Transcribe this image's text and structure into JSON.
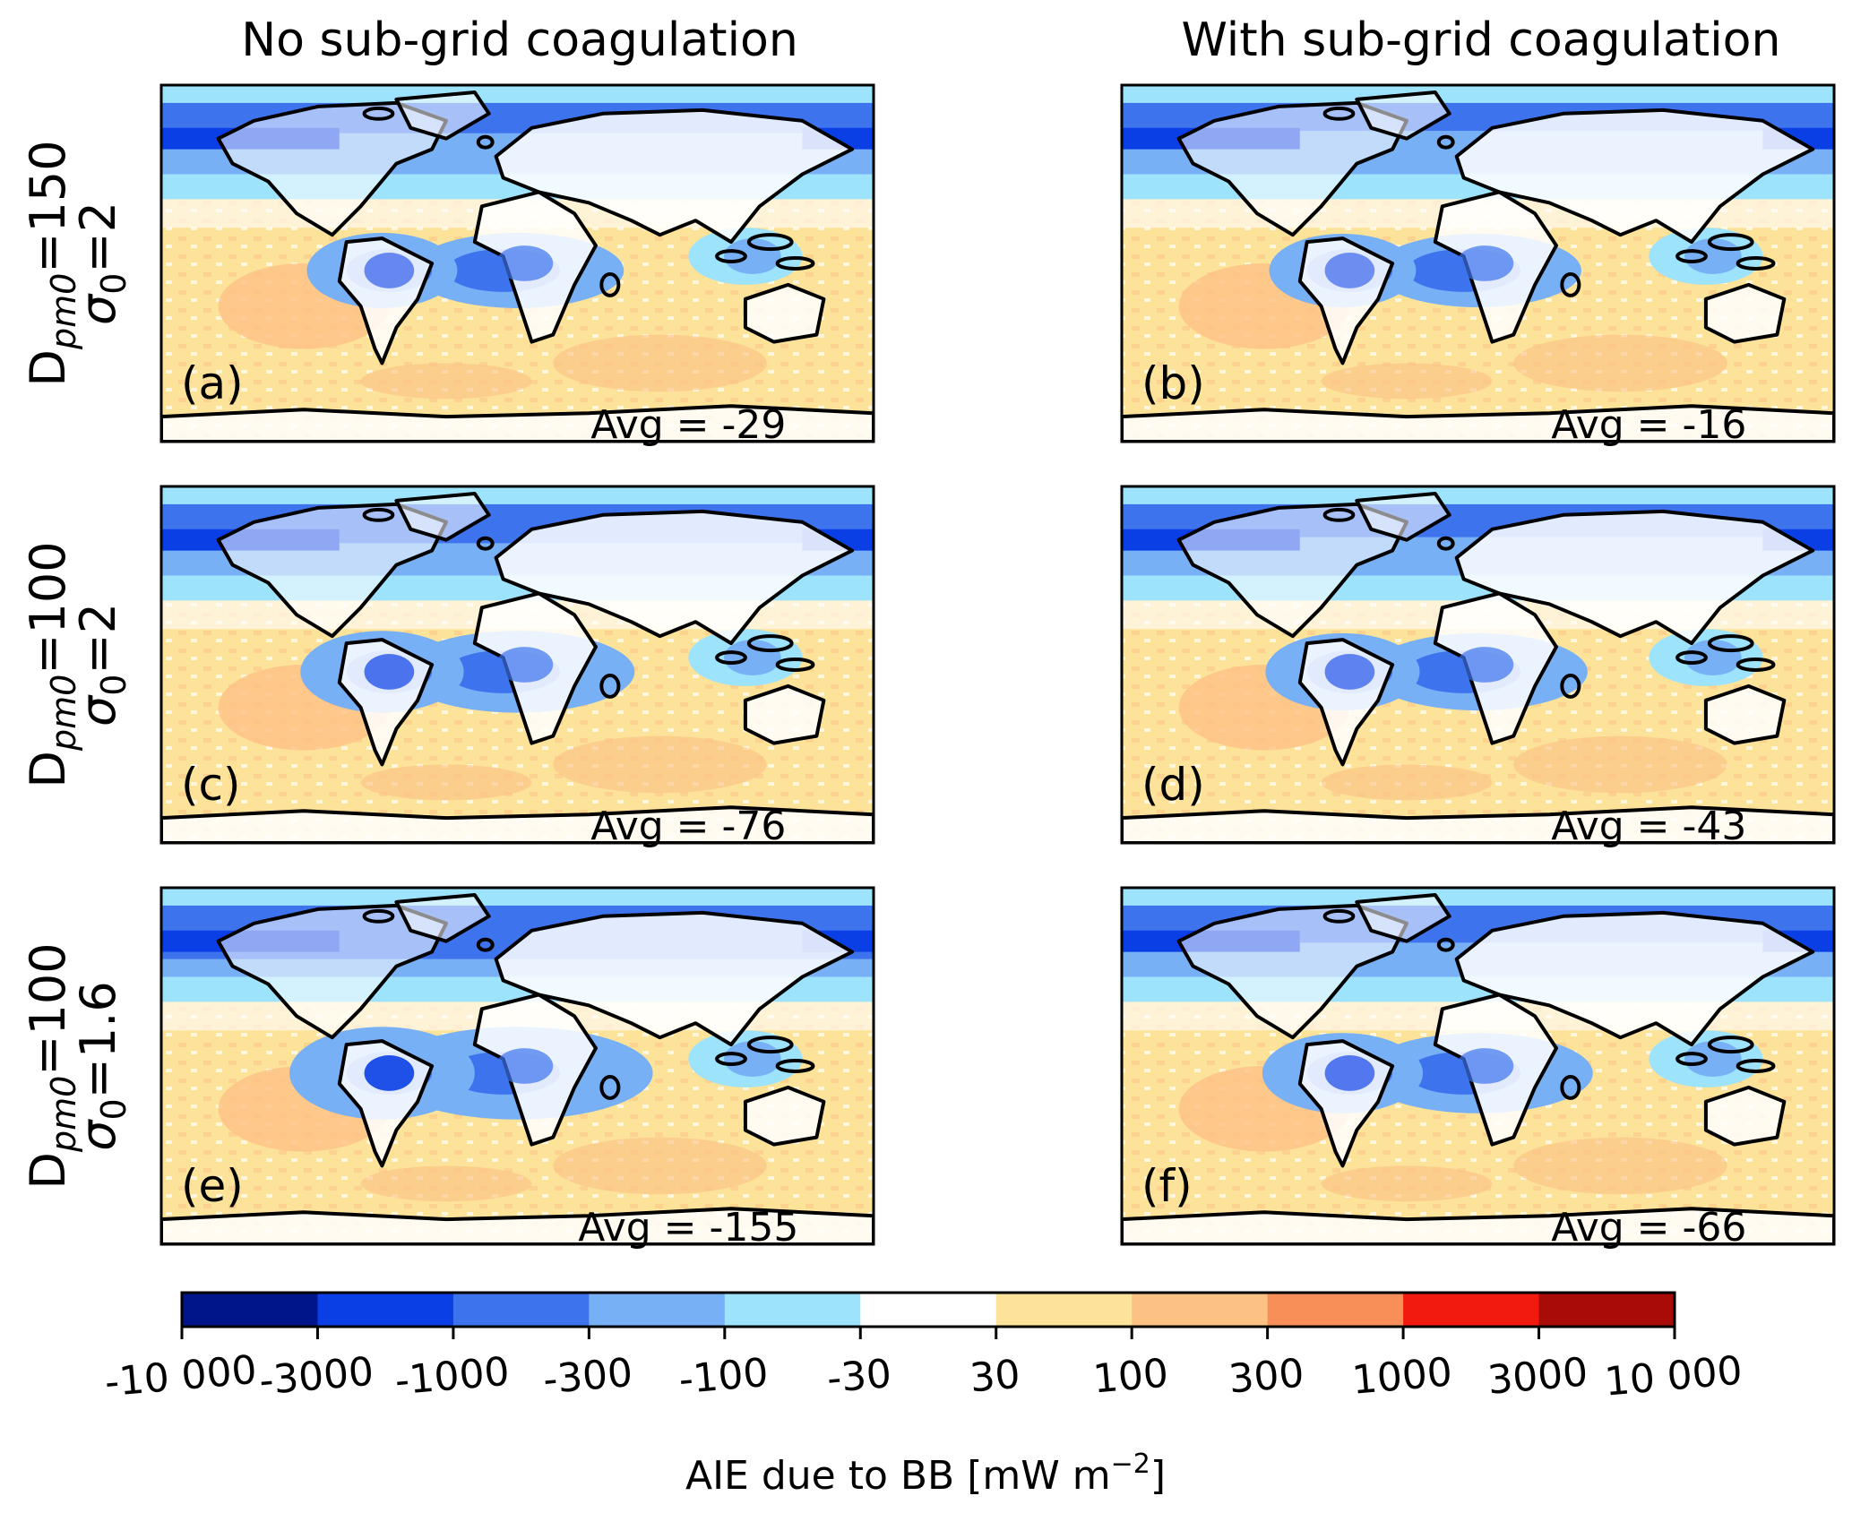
{
  "chart_data": {
    "type": "heatmap",
    "column_titles": [
      "No sub-grid coagulation",
      "With sub-grid coagulation"
    ],
    "row_labels": [
      {
        "d_sub": "pm0",
        "d_value": "=150",
        "sigma_sub": "0",
        "sigma_value": "=2"
      },
      {
        "d_sub": "pm0",
        "d_value": "=100",
        "sigma_sub": "0",
        "sigma_value": "=2"
      },
      {
        "d_sub": "pm0",
        "d_value": "=100",
        "sigma_sub": "0",
        "sigma_value": "=1.6"
      }
    ],
    "panels": [
      {
        "label": "(a)",
        "avg_text": "Avg = -29",
        "avg": -29
      },
      {
        "label": "(b)",
        "avg_text": "Avg = -16",
        "avg": -16
      },
      {
        "label": "(c)",
        "avg_text": "Avg = -76",
        "avg": -76
      },
      {
        "label": "(d)",
        "avg_text": "Avg = -43",
        "avg": -43
      },
      {
        "label": "(e)",
        "avg_text": "Avg = -155",
        "avg": -155
      },
      {
        "label": "(f)",
        "avg_text": "Avg = -66",
        "avg": -66
      }
    ],
    "colorbar": {
      "tick_labels": [
        "-10 000",
        "-3000",
        "-1000",
        "-300",
        "-100",
        "-30",
        "30",
        "100",
        "300",
        "1000",
        "3000",
        "10 000"
      ],
      "colors": [
        "#00158a",
        "#0a3fe6",
        "#3d74ee",
        "#78b0f6",
        "#9ee3fc",
        "#ffffff",
        "#fde29a",
        "#fcc284",
        "#f88e58",
        "#f21a0f",
        "#a80b08"
      ],
      "label": "AIE due to BB [mW m",
      "label_sup": "−2",
      "label_end": "]"
    }
  }
}
